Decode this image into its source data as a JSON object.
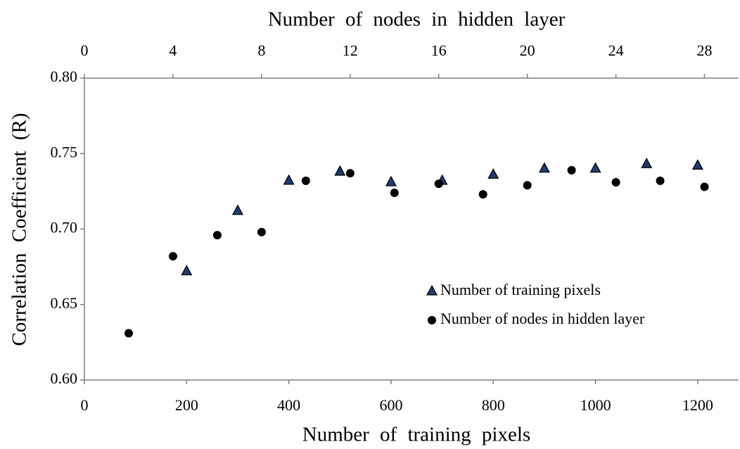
{
  "chart_data": {
    "type": "scatter",
    "xlabel": "Number of training pixels",
    "x2label": "Number of nodes in hidden layer",
    "ylabel": "Correlation Coefficient (R)",
    "xlim": [
      0,
      1280
    ],
    "xticks": [
      0,
      200,
      400,
      600,
      800,
      1000,
      1200
    ],
    "x2lim": [
      0,
      29.54
    ],
    "x2ticks": [
      0,
      4,
      8,
      12,
      16,
      20,
      24,
      28
    ],
    "ylim": [
      0.6,
      0.8
    ],
    "yticks": [
      {
        "value": 0.6,
        "label": "0.60"
      },
      {
        "value": 0.65,
        "label": "0.65"
      },
      {
        "value": 0.7,
        "label": "0.70"
      },
      {
        "value": 0.75,
        "label": "0.75"
      },
      {
        "value": 0.8,
        "label": "0.80"
      }
    ],
    "series": [
      {
        "name": "Number of training pixels",
        "marker": "triangle",
        "color": "#1f3a6e",
        "x": [
          200,
          300,
          400,
          500,
          600,
          700,
          800,
          900,
          1000,
          1100,
          1200
        ],
        "values": [
          0.672,
          0.712,
          0.732,
          0.738,
          0.731,
          0.732,
          0.736,
          0.74,
          0.74,
          0.743,
          0.742
        ]
      },
      {
        "name": "Number of nodes in hidden layer",
        "marker": "circle",
        "color": "#000000",
        "axis": "x2",
        "x": [
          2,
          4,
          6,
          8,
          10,
          12,
          14,
          16,
          18,
          20,
          22,
          24,
          26,
          28
        ],
        "values": [
          0.631,
          0.682,
          0.696,
          0.698,
          0.732,
          0.737,
          0.724,
          0.73,
          0.723,
          0.729,
          0.739,
          0.731,
          0.732,
          0.728
        ]
      }
    ]
  }
}
